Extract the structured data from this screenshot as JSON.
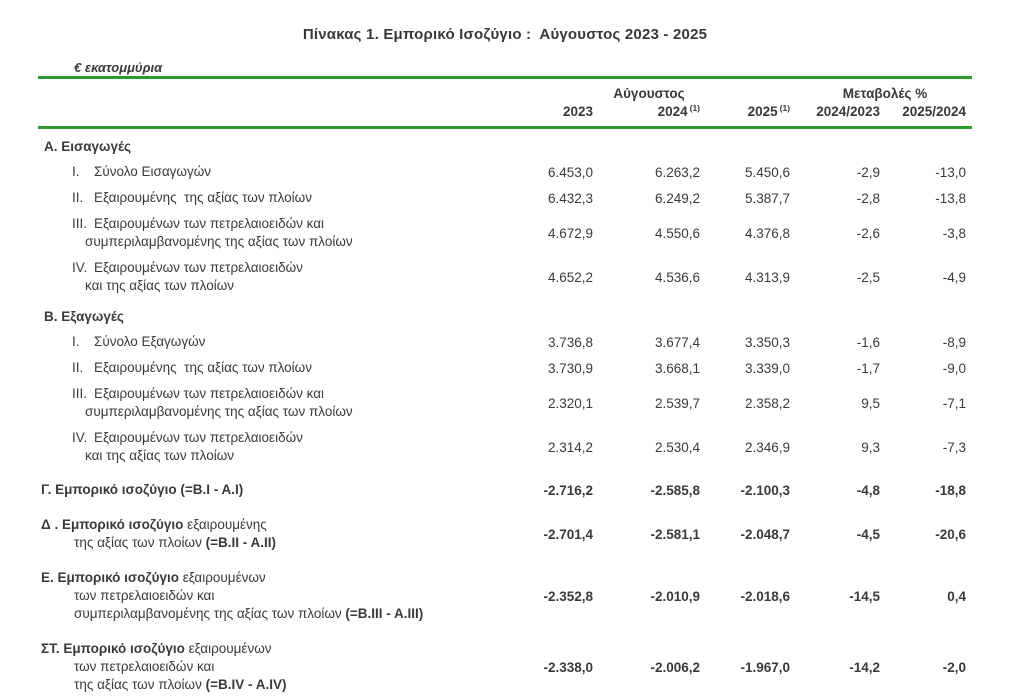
{
  "title": "Πίνακας 1. Εμπορικό Ισοζύγιο :  Αύγουστος 2023 - 2025",
  "unit_label": "€ εκατομμύρια",
  "columns": {
    "group1": "Αύγουστος",
    "group2": "Μεταβολές %",
    "years": [
      {
        "text": "2023",
        "sup": ""
      },
      {
        "text": "2024",
        "sup": "(1)"
      },
      {
        "text": "2025",
        "sup": "(1)"
      },
      {
        "text": "2024/2023",
        "sup": ""
      },
      {
        "text": "2025/2024",
        "sup": ""
      }
    ]
  },
  "table": {
    "rows": [
      {
        "kind": "section",
        "num": "",
        "lines": [
          [
            {
              "t": "Α. Εισαγωγές",
              "b": true
            }
          ]
        ],
        "values": [
          "",
          "",
          "",
          "",
          ""
        ],
        "bold_values": false
      },
      {
        "kind": "item",
        "num": "I.",
        "lines": [
          [
            {
              "t": "Σύνολο Εισαγωγών",
              "b": false
            }
          ]
        ],
        "values": [
          "6.453,0",
          "6.263,2",
          "5.450,6",
          "-2,9",
          "-13,0"
        ],
        "bold_values": false
      },
      {
        "kind": "item",
        "num": "II.",
        "lines": [
          [
            {
              "t": "Εξαιρουμένης  της αξίας των πλοίων",
              "b": false
            }
          ]
        ],
        "values": [
          "6.432,3",
          "6.249,2",
          "5.387,7",
          "-2,8",
          "-13,8"
        ],
        "bold_values": false
      },
      {
        "kind": "item",
        "num": "III.",
        "lines": [
          [
            {
              "t": "Εξαιρουμένων των πετρελαιοειδών και",
              "b": false
            }
          ],
          [
            {
              "t": "συμπεριλαμβανομένης της αξίας των πλοίων",
              "b": false
            }
          ]
        ],
        "values": [
          "4.672,9",
          "4.550,6",
          "4.376,8",
          "-2,6",
          "-3,8"
        ],
        "bold_values": false
      },
      {
        "kind": "item",
        "num": "IV.",
        "lines": [
          [
            {
              "t": "Εξαιρουμένων των πετρελαιοειδών",
              "b": false
            }
          ],
          [
            {
              "t": "και της αξίας των πλοίων",
              "b": false
            }
          ]
        ],
        "values": [
          "4.652,2",
          "4.536,6",
          "4.313,9",
          "-2,5",
          "-4,9"
        ],
        "bold_values": false
      },
      {
        "kind": "section",
        "num": "",
        "lines": [
          [
            {
              "t": "Β. Εξαγωγές",
              "b": true
            }
          ]
        ],
        "values": [
          "",
          "",
          "",
          "",
          ""
        ],
        "bold_values": false
      },
      {
        "kind": "item",
        "num": "I.",
        "lines": [
          [
            {
              "t": "Σύνολο Εξαγωγών",
              "b": false
            }
          ]
        ],
        "values": [
          "3.736,8",
          "3.677,4",
          "3.350,3",
          "-1,6",
          "-8,9"
        ],
        "bold_values": false
      },
      {
        "kind": "item",
        "num": "II.",
        "lines": [
          [
            {
              "t": "Εξαιρουμένης  της αξίας των πλοίων",
              "b": false
            }
          ]
        ],
        "values": [
          "3.730,9",
          "3.668,1",
          "3.339,0",
          "-1,7",
          "-9,0"
        ],
        "bold_values": false
      },
      {
        "kind": "item",
        "num": "III.",
        "lines": [
          [
            {
              "t": "Εξαιρουμένων των πετρελαιοειδών και",
              "b": false
            }
          ],
          [
            {
              "t": "συμπεριλαμβανομένης της αξίας των πλοίων",
              "b": false
            }
          ]
        ],
        "values": [
          "2.320,1",
          "2.539,7",
          "2.358,2",
          "9,5",
          "-7,1"
        ],
        "bold_values": false
      },
      {
        "kind": "item",
        "num": "IV.",
        "lines": [
          [
            {
              "t": "Εξαιρουμένων των πετρελαιοειδών",
              "b": false
            }
          ],
          [
            {
              "t": "και της αξίας των πλοίων",
              "b": false
            }
          ]
        ],
        "values": [
          "2.314,2",
          "2.530,4",
          "2.346,9",
          "9,3",
          "-7,3"
        ],
        "bold_values": false
      },
      {
        "kind": "summary",
        "num": "",
        "lines": [
          [
            {
              "t": "Γ. Εμπορικό ισοζύγιο (=B.I - A.I)",
              "b": true
            }
          ]
        ],
        "values": [
          "-2.716,2",
          "-2.585,8",
          "-2.100,3",
          "-4,8",
          "-18,8"
        ],
        "bold_values": true
      },
      {
        "kind": "summary",
        "num": "",
        "lines": [
          [
            {
              "t": "Δ . Εμπορικό ισοζύγιο ",
              "b": true
            },
            {
              "t": "εξαιρουμένης",
              "b": false
            }
          ],
          [
            {
              "t": "της αξίας των πλοίων ",
              "b": false
            },
            {
              "t": "(=B.II - A.II)",
              "b": true
            }
          ]
        ],
        "values": [
          "-2.701,4",
          "-2.581,1",
          "-2.048,7",
          "-4,5",
          "-20,6"
        ],
        "bold_values": true
      },
      {
        "kind": "summary",
        "num": "",
        "lines": [
          [
            {
              "t": "Ε. Εμπορικό ισοζύγιο ",
              "b": true
            },
            {
              "t": "εξαιρουμένων",
              "b": false
            }
          ],
          [
            {
              "t": "των πετρελαιοειδών και",
              "b": false
            }
          ],
          [
            {
              "t": "συμπεριλαμβανομένης της αξίας των πλοίων ",
              "b": false
            },
            {
              "t": "(=B.III - A.III)",
              "b": true
            }
          ]
        ],
        "values": [
          "-2.352,8",
          "-2.010,9",
          "-2.018,6",
          "-14,5",
          "0,4"
        ],
        "bold_values": true
      },
      {
        "kind": "summary",
        "num": "",
        "lines": [
          [
            {
              "t": "ΣΤ. Εμπορικό ισοζύγιο ",
              "b": true
            },
            {
              "t": "εξαιρουμένων",
              "b": false
            }
          ],
          [
            {
              "t": "των πετρελαιοειδών και",
              "b": false
            }
          ],
          [
            {
              "t": "της αξίας των πλοίων ",
              "b": false
            },
            {
              "t": "(=B.IV - A.IV)",
              "b": true
            }
          ]
        ],
        "values": [
          "-2.338,0",
          "-2.006,2",
          "-1.967,0",
          "-14,2",
          "-2,0"
        ],
        "bold_values": true
      }
    ]
  },
  "colors": {
    "rule_green": "#2e9b2e",
    "text": "#3a3a3a"
  }
}
